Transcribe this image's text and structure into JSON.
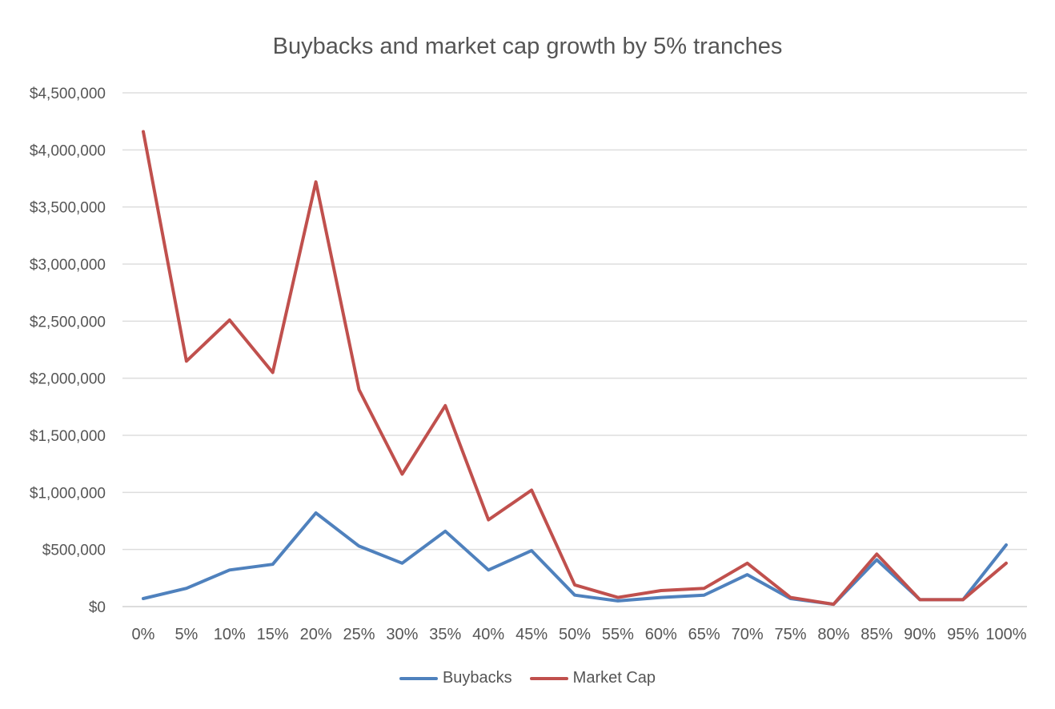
{
  "chart_data": {
    "type": "line",
    "title": "Buybacks and market cap growth by 5% tranches",
    "xlabel": "",
    "ylabel": "",
    "categories": [
      "0%",
      "5%",
      "10%",
      "15%",
      "20%",
      "25%",
      "30%",
      "35%",
      "40%",
      "45%",
      "50%",
      "55%",
      "60%",
      "65%",
      "70%",
      "75%",
      "80%",
      "85%",
      "90%",
      "95%",
      "100%"
    ],
    "y_ticks": [
      "$0",
      "$500,000",
      "$1,000,000",
      "$1,500,000",
      "$2,000,000",
      "$2,500,000",
      "$3,000,000",
      "$3,500,000",
      "$4,000,000",
      "$4,500,000"
    ],
    "ylim": [
      0,
      4500000
    ],
    "grid": true,
    "legend_position": "bottom",
    "series": [
      {
        "name": "Buybacks",
        "color": "#4f81bd",
        "values": [
          70000,
          160000,
          320000,
          370000,
          820000,
          530000,
          380000,
          660000,
          320000,
          490000,
          100000,
          50000,
          80000,
          100000,
          280000,
          70000,
          20000,
          410000,
          60000,
          60000,
          540000
        ]
      },
      {
        "name": "Market Cap",
        "color": "#c0504d",
        "values": [
          4160000,
          2150000,
          2510000,
          2050000,
          3720000,
          1900000,
          1160000,
          1760000,
          760000,
          1020000,
          190000,
          80000,
          140000,
          160000,
          380000,
          80000,
          20000,
          460000,
          60000,
          60000,
          380000
        ]
      }
    ]
  }
}
